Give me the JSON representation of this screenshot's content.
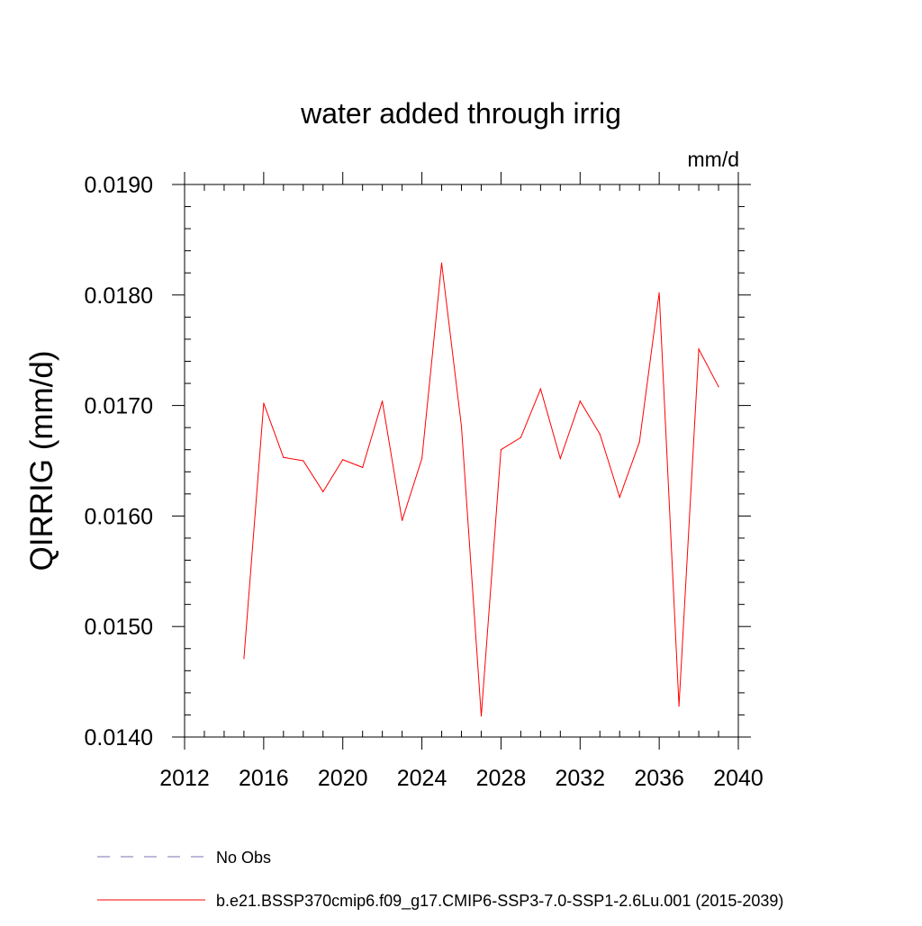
{
  "chart_data": {
    "type": "line",
    "title": "water added through irrig",
    "units": "mm/d",
    "ylabel": "QIRRIG  (mm/d)",
    "xlabel": "",
    "xlim": [
      2012,
      2040
    ],
    "ylim": [
      0.014,
      0.019
    ],
    "x_ticks": [
      "2012",
      "2016",
      "2020",
      "2024",
      "2028",
      "2032",
      "2036",
      "2040"
    ],
    "y_ticks": [
      "0.0140",
      "0.0150",
      "0.0160",
      "0.0170",
      "0.0180",
      "0.0190"
    ],
    "grid": false,
    "legend": [
      {
        "label": "No Obs",
        "color": "#7f6fb0",
        "style": "dashed"
      },
      {
        "label": "b.e21.BSSP370cmip6.f09_g17.CMIP6-SSP3-7.0-SSP1-2.6Lu.001 (2015-2039)",
        "color": "#ff0000",
        "style": "solid"
      }
    ],
    "series": [
      {
        "name": "b.e21.BSSP370cmip6.f09_g17.CMIP6-SSP3-7.0-SSP1-2.6Lu.001 (2015-2039)",
        "color": "#ff0000",
        "x": [
          2015,
          2016,
          2017,
          2018,
          2019,
          2020,
          2021,
          2022,
          2023,
          2024,
          2025,
          2026,
          2027,
          2028,
          2029,
          2030,
          2031,
          2032,
          2033,
          2034,
          2035,
          2036,
          2037,
          2038,
          2039
        ],
        "y": [
          0.01471,
          0.01702,
          0.01653,
          0.0165,
          0.01622,
          0.01651,
          0.01644,
          0.01704,
          0.01596,
          0.01652,
          0.01829,
          0.01681,
          0.01419,
          0.0166,
          0.01671,
          0.01715,
          0.01652,
          0.01704,
          0.01674,
          0.01617,
          0.01667,
          0.01802,
          0.01428,
          0.01751,
          0.01717
        ]
      }
    ]
  }
}
